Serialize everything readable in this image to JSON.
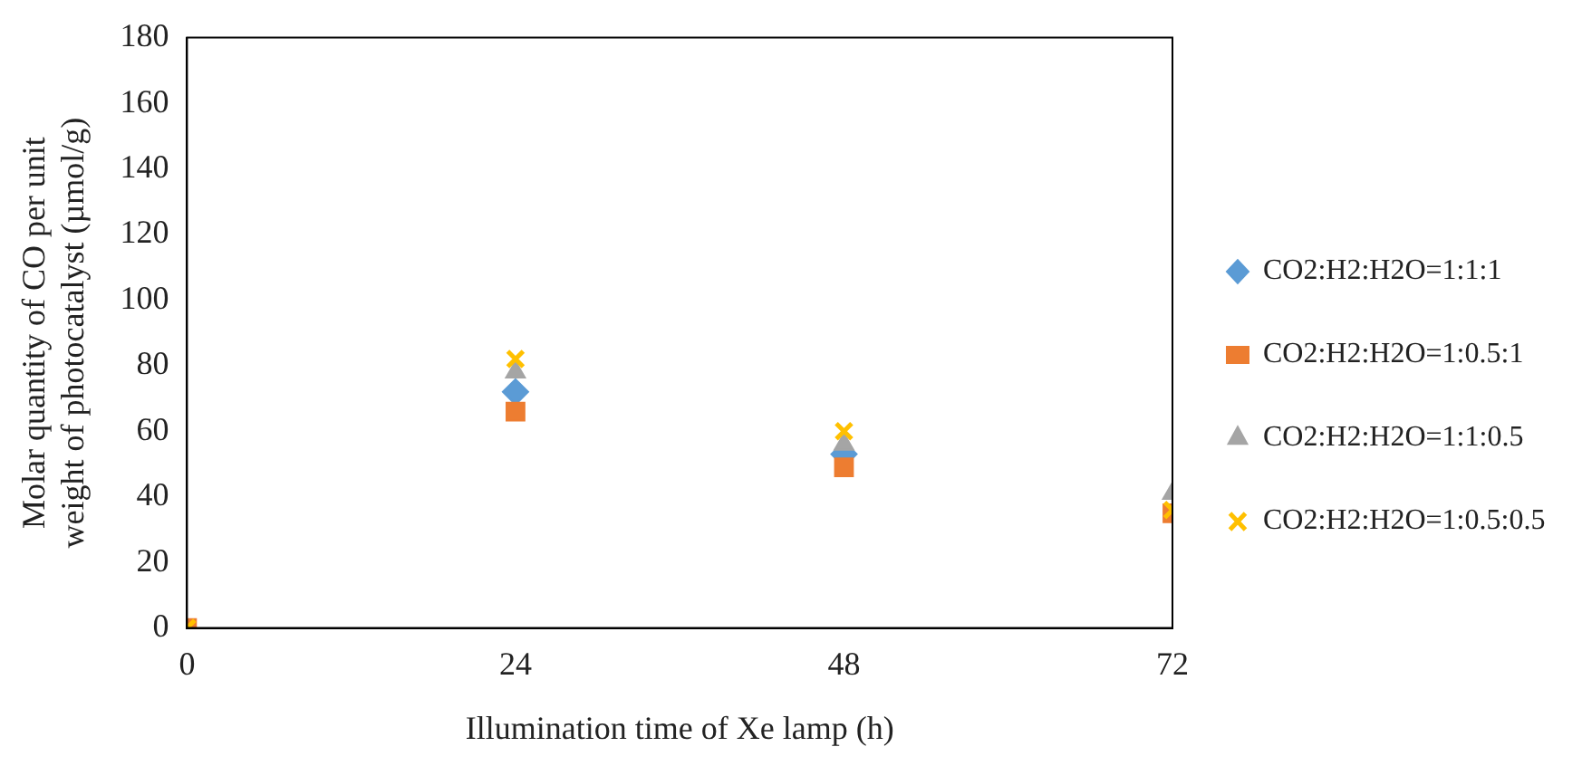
{
  "chart_data": {
    "type": "scatter",
    "xlabel": "Illumination time of Xe lamp (h)",
    "ylabel": "Molar quantity of CO per unit weight of photocatalyst (µmol/g)",
    "x": [
      0,
      24,
      48,
      72
    ],
    "xlim": [
      0,
      72
    ],
    "xticks": [
      0,
      24,
      48,
      72
    ],
    "ylim": [
      0,
      180
    ],
    "yticks": [
      0,
      20,
      40,
      60,
      80,
      100,
      120,
      140,
      160,
      180
    ],
    "grid": false,
    "legend": "right",
    "series": [
      {
        "name": "CO2:H2:H2O=1:1:1",
        "color": "#5b9bd5",
        "marker": "diamond",
        "values": [
          null,
          72,
          53,
          null
        ]
      },
      {
        "name": "CO2:H2:H2O=1:0.5:1",
        "color": "#ed7d31",
        "marker": "square",
        "values": [
          0,
          66,
          49,
          35
        ]
      },
      {
        "name": "CO2:H2:H2O=1:1:0.5",
        "color": "#a5a5a5",
        "marker": "triangle",
        "values": [
          null,
          78,
          56,
          41
        ]
      },
      {
        "name": "CO2:H2:H2O=1:0.5:0.5",
        "color": "#ffc000",
        "marker": "cross",
        "values": [
          0,
          82,
          60,
          36
        ]
      }
    ]
  }
}
